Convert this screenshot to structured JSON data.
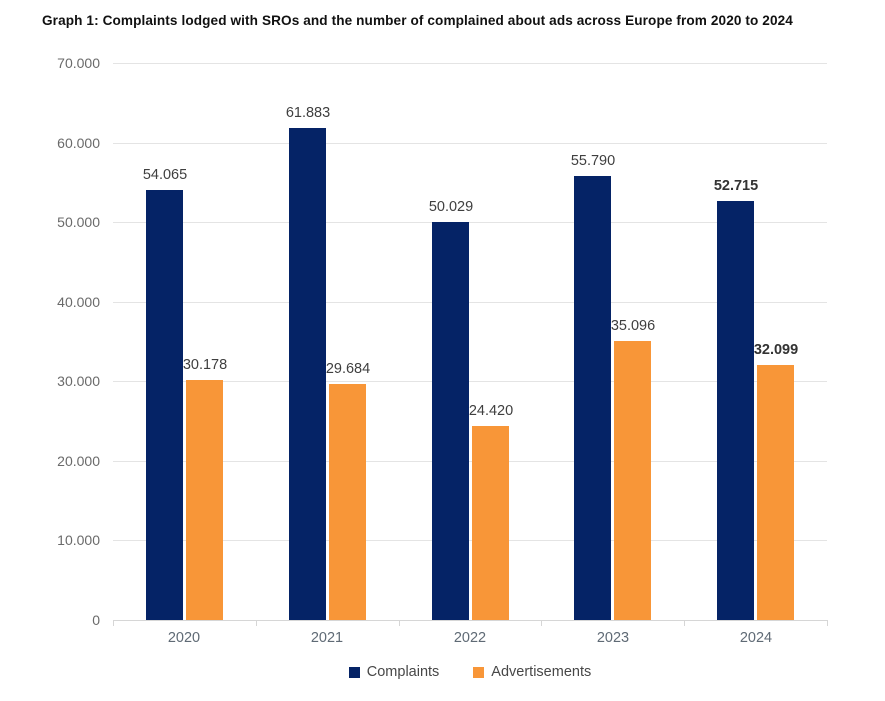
{
  "title": "Graph 1: Complaints lodged with SROs and the number of complained about ads across Europe from 2020 to 2024",
  "colors": {
    "complaints": "#052366",
    "advertisements": "#F89638",
    "gridline": "#e4e4e4",
    "axis_line": "#d6d6d6",
    "data_label": "#3f3f3f",
    "axis_label": "#6a6a6a"
  },
  "chart_data": {
    "type": "bar",
    "title": "Graph 1: Complaints lodged with SROs and the number of complained about ads across Europe from 2020 to 2024",
    "categories": [
      "2020",
      "2021",
      "2022",
      "2023",
      "2024"
    ],
    "series": [
      {
        "name": "Complaints",
        "color": "#052366",
        "values": [
          54065,
          61883,
          50029,
          55790,
          52715
        ]
      },
      {
        "name": "Advertisements",
        "color": "#F89638",
        "values": [
          30178,
          29684,
          24420,
          35096,
          32099
        ]
      }
    ],
    "data_labels": {
      "Complaints": [
        "54.065",
        "61.883",
        "50.029",
        "55.790",
        "52.715"
      ],
      "Advertisements": [
        "30.178",
        "29.684",
        "24.420",
        "35.096",
        "32.099"
      ]
    },
    "bold_label_categories": [
      "2024"
    ],
    "xlabel": "",
    "ylabel": "",
    "ylim": [
      0,
      70000
    ],
    "ytick_step": 10000,
    "ytick_labels": [
      "0",
      "10.000",
      "20.000",
      "30.000",
      "40.000",
      "50.000",
      "60.000",
      "70.000"
    ],
    "grid": true,
    "legend_position": "bottom",
    "legend_entries": [
      "Complaints",
      "Advertisements"
    ]
  }
}
